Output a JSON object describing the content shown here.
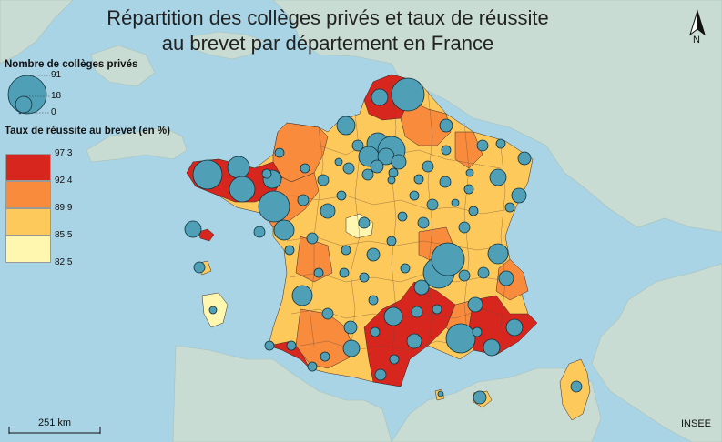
{
  "title_line1": "Répartition des collèges privés et taux de réussite",
  "title_line2": "au brevet par département en France",
  "legend_size": {
    "heading": "Nombre de collèges privés",
    "values": [
      "91",
      "18",
      "0"
    ]
  },
  "legend_color": {
    "heading": "Taux de réussite au brevet (en %)",
    "breaks": [
      "97,3",
      "92,4",
      "89,9",
      "85,5",
      "82,5"
    ],
    "classes": [
      {
        "color": "#d7261e"
      },
      {
        "color": "#f88b3c"
      },
      {
        "color": "#fdc95a"
      },
      {
        "color": "#fff7b0"
      }
    ]
  },
  "scale_label": "251 km",
  "source": "INSEE",
  "north_label": "N",
  "colors": {
    "sea": "#a8d4e6",
    "land": "#c8dcd3",
    "circle": "#4fa0b7",
    "circle_stroke": "#10303a"
  },
  "legend_icon": "proportional-circles-icon"
}
